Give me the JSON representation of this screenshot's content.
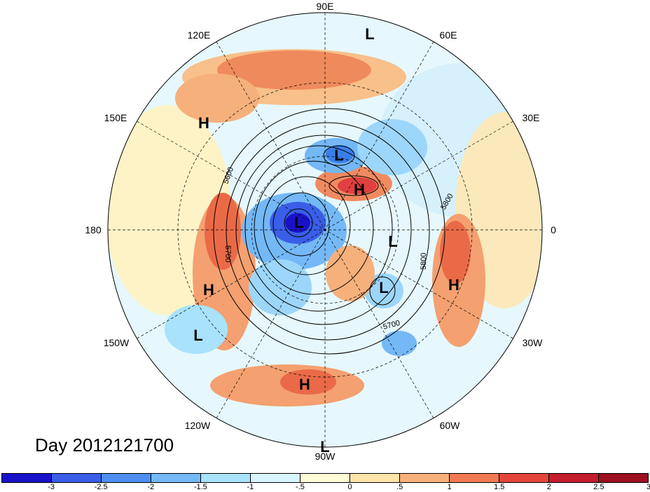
{
  "map": {
    "longitude_labels": {
      "top": "90E",
      "upper_right": "60E",
      "right_upper": "30E",
      "right": "0",
      "right_lower": "30W",
      "lower_right": "60W",
      "bottom": "90W",
      "lower_left": "120W",
      "left_lower": "150W",
      "left": "180",
      "left_upper": "150E",
      "upper_left": "120E"
    },
    "pressure_centers": [
      {
        "id": "l1",
        "label": "L"
      },
      {
        "id": "h1",
        "label": "H"
      },
      {
        "id": "l2",
        "label": "L"
      },
      {
        "id": "h2",
        "label": "H"
      },
      {
        "id": "l3",
        "label": "L"
      },
      {
        "id": "l4",
        "label": "L"
      },
      {
        "id": "h3",
        "label": "H"
      },
      {
        "id": "l5",
        "label": "L"
      },
      {
        "id": "h4",
        "label": "H"
      },
      {
        "id": "h5",
        "label": "H"
      },
      {
        "id": "l6",
        "label": "L"
      },
      {
        "id": "l7",
        "label": "L"
      }
    ],
    "contour_labels": [
      "5600",
      "5700",
      "5800",
      "5800",
      "5700"
    ]
  },
  "date_label": "Day 2012121700",
  "colorbar": {
    "colors": [
      "#1a12c8",
      "#3a5ee8",
      "#4d8ef0",
      "#74b8f6",
      "#a8e2fb",
      "#d8f5fd",
      "#fefcd8",
      "#fde4a8",
      "#f8b07a",
      "#f07a52",
      "#e4463c",
      "#c21e2c",
      "#9c1020"
    ],
    "ticks": [
      "-3",
      "-2.5",
      "-2",
      "-1.5",
      "-1",
      "-.5",
      "0",
      ".5",
      "1",
      "1.5",
      "2",
      "2.5",
      "3"
    ]
  }
}
